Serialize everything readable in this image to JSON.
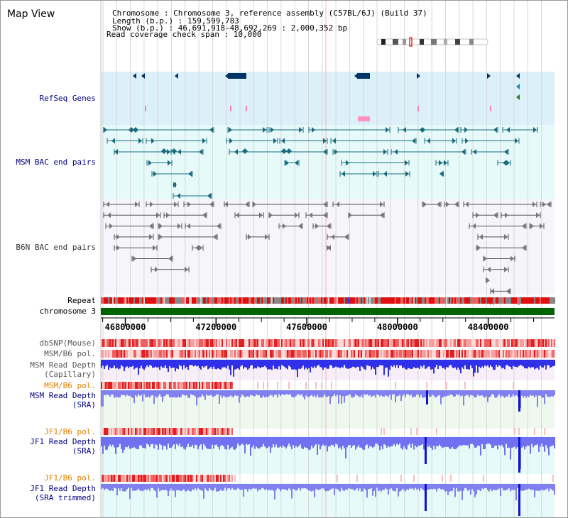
{
  "header": {
    "title": "Map View",
    "info_lines": [
      "Chromosome     : Chromosome 3, reference assembly (C57BL/6J) (Build 37)",
      "Length (b.p.) : 159,599,783",
      " Show (b.p.) : 46,691,918-48,692,269 : 2,000,352 bp",
      "Read coverage check span : 10,000"
    ]
  },
  "tracks": {
    "refseq": "RefSeq Genes",
    "msm_bac": "MSM BAC end pairs",
    "b6n_bac": "B6N BAC end pairs",
    "repeat": "Repeat",
    "chromosome": "chromosome 3",
    "dbsnp": "dbSNP(Mouse)",
    "msm_pol": "MSM/B6 pol.",
    "msm_depth_cap_1": "MSM Read Depth",
    "msm_depth_cap_2": "(Capillary)",
    "msm_pol2": "MSM/B6 pol.",
    "msm_depth_sra_1": "MSM Read Depth",
    "msm_depth_sra_2": "(SRA)",
    "jf1_pol": "JF1/B6 pol.",
    "jf1_depth_sra_1": "JF1 Read Depth",
    "jf1_depth_sra_2": "(SRA)",
    "jf1_pol2": "JF1/B6 pol.",
    "jf1_depth_trim_1": "JF1 Read Depth",
    "jf1_depth_trim_2": "(SRA trimmed)"
  },
  "axis": {
    "ticks": [
      "46800000",
      "47200000",
      "47600000",
      "48000000",
      "48400000"
    ],
    "tick_values": [
      46800000,
      47200000,
      47600000,
      48000000,
      48400000
    ],
    "view_start": 46691918,
    "view_end": 48692269
  },
  "colors": {
    "refseq_bg": "#dcf0fa",
    "msm_bg": "#e6fafa",
    "b6n_bg": "#f5f5fa",
    "gene": "#003366",
    "msm_pair": "#1a6b80",
    "b6n_pair": "#555555",
    "chrom": "#006400",
    "repeat_red": "#e01010",
    "depth_blue": "#2020e0",
    "depth_light": "#8080f0",
    "pol_label_orange": "#e08000",
    "label_blue": "#000080"
  }
}
